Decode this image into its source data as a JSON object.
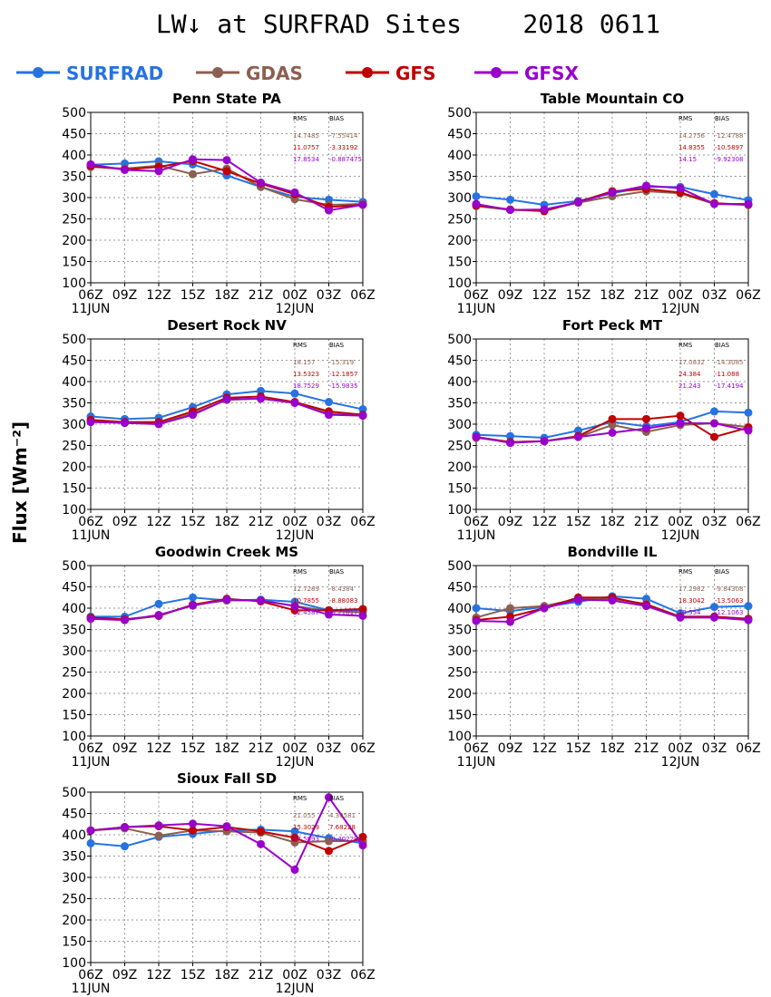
{
  "header": {
    "title": "LW↓ at SURFRAD Sites    2018 0611",
    "y_axis_label": "Flux [Wm⁻²]"
  },
  "legend": [
    {
      "name": "SURFRAD",
      "color": "#2673e0"
    },
    {
      "name": "GDAS",
      "color": "#8c5f50"
    },
    {
      "name": "GFS",
      "color": "#c00000"
    },
    {
      "name": "GFSX",
      "color": "#9900cc"
    }
  ],
  "chart_data": [
    {
      "type": "line",
      "title": "Penn State PA",
      "x": [
        "06Z",
        "09Z",
        "12Z",
        "15Z",
        "18Z",
        "21Z",
        "00Z",
        "03Z",
        "06Z"
      ],
      "date_labels": [
        "11JUN",
        "12JUN"
      ],
      "ylim": [
        100,
        500
      ],
      "yticks": [
        100,
        150,
        200,
        250,
        300,
        350,
        400,
        450,
        500
      ],
      "grid": true,
      "stats": {
        "header": [
          "RMS",
          "BIAS"
        ],
        "rows": [
          [
            "14.7485",
            "-7.55414"
          ],
          [
            "11.0757",
            "-3.33192"
          ],
          [
            "17.8534",
            "-0.887475"
          ]
        ]
      },
      "series": [
        {
          "name": "SURFRAD",
          "values": [
            377,
            380,
            385,
            378,
            352,
            325,
            302,
            295,
            290
          ]
        },
        {
          "name": "GDAS",
          "values": [
            372,
            368,
            375,
            355,
            368,
            325,
            296,
            283,
            285
          ]
        },
        {
          "name": "GFS",
          "values": [
            374,
            366,
            372,
            386,
            362,
            333,
            308,
            278,
            283
          ]
        },
        {
          "name": "GFSX",
          "values": [
            378,
            365,
            362,
            390,
            388,
            335,
            312,
            270,
            283
          ]
        }
      ]
    },
    {
      "type": "line",
      "title": "Table Mountain CO",
      "x": [
        "06Z",
        "09Z",
        "12Z",
        "15Z",
        "18Z",
        "21Z",
        "00Z",
        "03Z",
        "06Z"
      ],
      "date_labels": [
        "11JUN",
        "12JUN"
      ],
      "ylim": [
        100,
        500
      ],
      "yticks": [
        100,
        150,
        200,
        250,
        300,
        350,
        400,
        450,
        500
      ],
      "grid": true,
      "stats": {
        "header": [
          "RMS",
          "BIAS"
        ],
        "rows": [
          [
            "14.2756",
            "-12.4788"
          ],
          [
            "14.8355",
            "-10.5897"
          ],
          [
            "14.15",
            "-9.92308"
          ]
        ]
      },
      "series": [
        {
          "name": "SURFRAD",
          "values": [
            303,
            295,
            283,
            292,
            310,
            325,
            325,
            308,
            294
          ]
        },
        {
          "name": "GDAS",
          "values": [
            280,
            271,
            270,
            288,
            303,
            315,
            310,
            285,
            283
          ]
        },
        {
          "name": "GFS",
          "values": [
            282,
            272,
            268,
            290,
            315,
            320,
            312,
            287,
            283
          ]
        },
        {
          "name": "GFSX",
          "values": [
            285,
            271,
            272,
            289,
            312,
            328,
            322,
            285,
            285
          ]
        }
      ]
    },
    {
      "type": "line",
      "title": "Desert Rock NV",
      "x": [
        "06Z",
        "09Z",
        "12Z",
        "15Z",
        "18Z",
        "21Z",
        "00Z",
        "03Z",
        "06Z"
      ],
      "date_labels": [
        "11JUN",
        "12JUN"
      ],
      "ylim": [
        100,
        500
      ],
      "yticks": [
        100,
        150,
        200,
        250,
        300,
        350,
        400,
        450,
        500
      ],
      "grid": true,
      "stats": {
        "header": [
          "RMS",
          "BIAS"
        ],
        "rows": [
          [
            "18.157",
            "-15.319"
          ],
          [
            "13.5323",
            "-12.1857"
          ],
          [
            "18.7529",
            "-15.9835"
          ]
        ]
      },
      "series": [
        {
          "name": "SURFRAD",
          "values": [
            318,
            312,
            315,
            340,
            370,
            378,
            372,
            352,
            335
          ]
        },
        {
          "name": "GDAS",
          "values": [
            307,
            303,
            302,
            325,
            357,
            360,
            350,
            325,
            320
          ]
        },
        {
          "name": "GFS",
          "values": [
            310,
            305,
            305,
            330,
            362,
            365,
            352,
            330,
            322
          ]
        },
        {
          "name": "GFSX",
          "values": [
            305,
            303,
            300,
            322,
            358,
            360,
            350,
            322,
            320
          ]
        }
      ]
    },
    {
      "type": "line",
      "title": "Fort Peck MT",
      "x": [
        "06Z",
        "09Z",
        "12Z",
        "15Z",
        "18Z",
        "21Z",
        "00Z",
        "03Z",
        "06Z"
      ],
      "date_labels": [
        "11JUN",
        "12JUN"
      ],
      "ylim": [
        100,
        500
      ],
      "yticks": [
        100,
        150,
        200,
        250,
        300,
        350,
        400,
        450,
        500
      ],
      "grid": true,
      "stats": {
        "header": [
          "RMS",
          "BIAS"
        ],
        "rows": [
          [
            "17.0832",
            "-14.3085"
          ],
          [
            "24.384",
            "-11.088"
          ],
          [
            "21.243",
            "-17.4194"
          ]
        ]
      },
      "series": [
        {
          "name": "SURFRAD",
          "values": [
            275,
            272,
            268,
            285,
            305,
            295,
            305,
            330,
            327
          ]
        },
        {
          "name": "GDAS",
          "values": [
            268,
            258,
            260,
            270,
            298,
            282,
            298,
            302,
            293
          ]
        },
        {
          "name": "GFS",
          "values": [
            270,
            258,
            260,
            272,
            312,
            312,
            320,
            270,
            292
          ]
        },
        {
          "name": "GFSX",
          "values": [
            270,
            256,
            260,
            270,
            280,
            290,
            302,
            302,
            285
          ]
        }
      ]
    },
    {
      "type": "line",
      "title": "Goodwin Creek MS",
      "x": [
        "06Z",
        "09Z",
        "12Z",
        "15Z",
        "18Z",
        "21Z",
        "00Z",
        "03Z",
        "06Z"
      ],
      "date_labels": [
        "11JUN",
        "12JUN"
      ],
      "ylim": [
        100,
        500
      ],
      "yticks": [
        100,
        150,
        200,
        250,
        300,
        350,
        400,
        450,
        500
      ],
      "grid": true,
      "stats": {
        "header": [
          "RMS",
          "BIAS"
        ],
        "rows": [
          [
            "12.7289",
            "-8.4384"
          ],
          [
            "10.7855",
            "-8.88083"
          ],
          [
            "12.4587",
            "-9.21817"
          ]
        ]
      },
      "series": [
        {
          "name": "SURFRAD",
          "values": [
            380,
            380,
            410,
            425,
            418,
            420,
            415,
            395,
            395
          ]
        },
        {
          "name": "GDAS",
          "values": [
            376,
            372,
            382,
            408,
            418,
            418,
            405,
            393,
            390
          ]
        },
        {
          "name": "GFS",
          "values": [
            378,
            374,
            382,
            408,
            422,
            416,
            395,
            395,
            398
          ]
        },
        {
          "name": "GFSX",
          "values": [
            375,
            372,
            384,
            406,
            420,
            418,
            405,
            385,
            382
          ]
        }
      ]
    },
    {
      "type": "line",
      "title": "Bondville IL",
      "x": [
        "06Z",
        "09Z",
        "12Z",
        "15Z",
        "18Z",
        "21Z",
        "00Z",
        "03Z",
        "06Z"
      ],
      "date_labels": [
        "11JUN",
        "12JUN"
      ],
      "ylim": [
        100,
        500
      ],
      "yticks": [
        100,
        150,
        200,
        250,
        300,
        350,
        400,
        450,
        500
      ],
      "grid": true,
      "stats": {
        "header": [
          "RMS",
          "BIAS"
        ],
        "rows": [
          [
            "17.2982",
            "-9.84308"
          ],
          [
            "18.3042",
            "-13.5063"
          ],
          [
            "13.554",
            "-12.1063"
          ]
        ]
      },
      "series": [
        {
          "name": "SURFRAD",
          "values": [
            400,
            393,
            403,
            415,
            428,
            422,
            388,
            403,
            405
          ]
        },
        {
          "name": "GDAS",
          "values": [
            378,
            400,
            405,
            422,
            422,
            410,
            380,
            380,
            375
          ]
        },
        {
          "name": "GFS",
          "values": [
            372,
            380,
            400,
            425,
            425,
            408,
            380,
            380,
            375
          ]
        },
        {
          "name": "GFSX",
          "values": [
            370,
            368,
            400,
            420,
            418,
            405,
            378,
            378,
            372
          ]
        }
      ]
    },
    {
      "type": "line",
      "title": "Sioux Fall SD",
      "x": [
        "06Z",
        "09Z",
        "12Z",
        "15Z",
        "18Z",
        "21Z",
        "00Z",
        "03Z",
        "06Z"
      ],
      "date_labels": [
        "11JUN",
        "12JUN"
      ],
      "ylim": [
        100,
        500
      ],
      "yticks": [
        100,
        150,
        200,
        250,
        300,
        350,
        400,
        450,
        500
      ],
      "grid": true,
      "stats": {
        "header": [
          "RMS",
          "BIAS"
        ],
        "rows": [
          [
            "21.055",
            "4.30581"
          ],
          [
            "15.3029",
            "7.68228"
          ],
          [
            "37.5893",
            "-9.40228"
          ]
        ]
      },
      "series": [
        {
          "name": "SURFRAD",
          "values": [
            380,
            373,
            395,
            402,
            410,
            412,
            408,
            392,
            380
          ]
        },
        {
          "name": "GDAS",
          "values": [
            410,
            415,
            398,
            410,
            408,
            405,
            382,
            385,
            385
          ]
        },
        {
          "name": "GFS",
          "values": [
            410,
            418,
            420,
            410,
            418,
            408,
            393,
            362,
            395
          ]
        },
        {
          "name": "GFSX",
          "values": [
            410,
            418,
            422,
            426,
            420,
            378,
            318,
            488,
            375
          ]
        }
      ]
    }
  ]
}
